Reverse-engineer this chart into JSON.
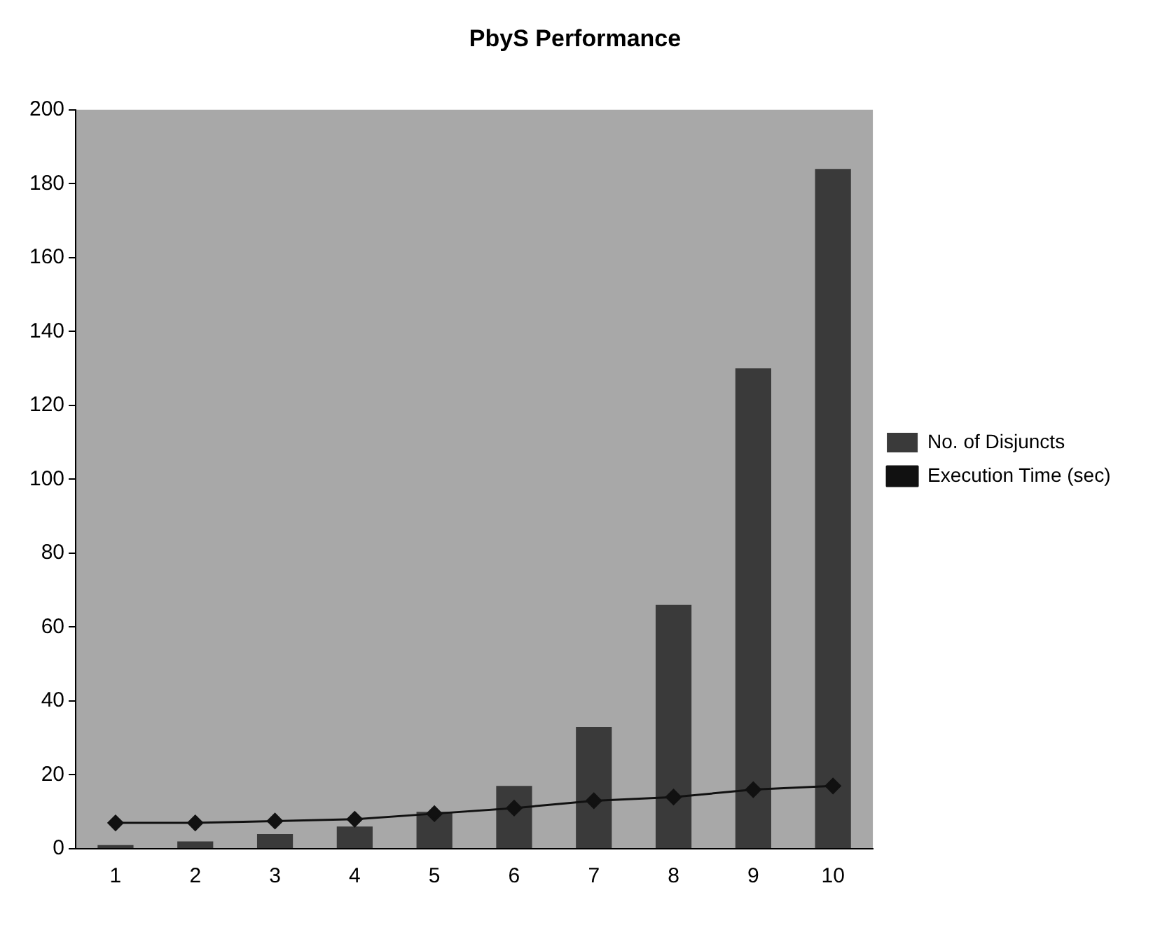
{
  "chart_data": {
    "type": "bar",
    "title": "PbyS Performance",
    "categories": [
      "1",
      "2",
      "3",
      "4",
      "5",
      "6",
      "7",
      "8",
      "9",
      "10"
    ],
    "series": [
      {
        "name": "No. of Disjuncts",
        "color": "#3a3a3a",
        "values": [
          1,
          2,
          4,
          6,
          10,
          17,
          33,
          66,
          130,
          184
        ]
      },
      {
        "name": "Execution Time (sec)",
        "type": "line",
        "color": "#111111",
        "values": [
          7,
          7,
          7.5,
          8,
          9.5,
          11,
          13,
          14,
          16,
          17
        ]
      }
    ],
    "ylim": [
      0,
      200
    ],
    "yticks": [
      0,
      20,
      40,
      60,
      80,
      100,
      120,
      140,
      160,
      180,
      200
    ],
    "grid": false,
    "legend": "right",
    "marker": "diamond"
  }
}
